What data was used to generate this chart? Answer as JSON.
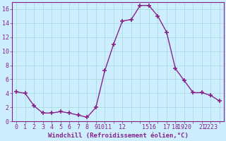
{
  "x": [
    0,
    1,
    2,
    3,
    4,
    5,
    6,
    7,
    8,
    9,
    10,
    11,
    12,
    13,
    14,
    15,
    16,
    17,
    18,
    19,
    20,
    21,
    22,
    23
  ],
  "y": [
    4.2,
    4.0,
    2.2,
    1.2,
    1.2,
    1.4,
    1.2,
    0.9,
    0.6,
    2.0,
    7.2,
    11.0,
    14.3,
    14.5,
    16.5,
    16.5,
    15.0,
    12.7,
    7.5,
    5.8,
    4.1,
    4.1,
    3.7,
    2.9
  ],
  "line_color": "#882288",
  "marker": "+",
  "marker_size": 4,
  "marker_linewidth": 1.2,
  "background_color": "#cceeff",
  "grid_color": "#aadddd",
  "xlabel": "Windchill (Refroidissement éolien,°C)",
  "ylim": [
    0,
    17
  ],
  "xlim": [
    -0.5,
    23.5
  ],
  "yticks": [
    0,
    2,
    4,
    6,
    8,
    10,
    12,
    14,
    16
  ],
  "xticks": [
    0,
    1,
    2,
    3,
    4,
    5,
    6,
    7,
    8,
    9,
    10,
    11,
    12,
    15,
    16,
    17,
    18,
    19,
    20,
    21,
    22,
    23
  ],
  "xtick_labels": [
    "0",
    "1",
    "2",
    "3",
    "4",
    "5",
    "6",
    "7",
    "8",
    "9",
    "1011",
    "12",
    "",
    "1516",
    "17",
    "18",
    "1920",
    "21",
    "2223",
    "",
    "",
    ""
  ],
  "tick_color": "#882288",
  "label_fontsize": 6.5,
  "tick_fontsize": 6.0,
  "line_width": 1.0
}
